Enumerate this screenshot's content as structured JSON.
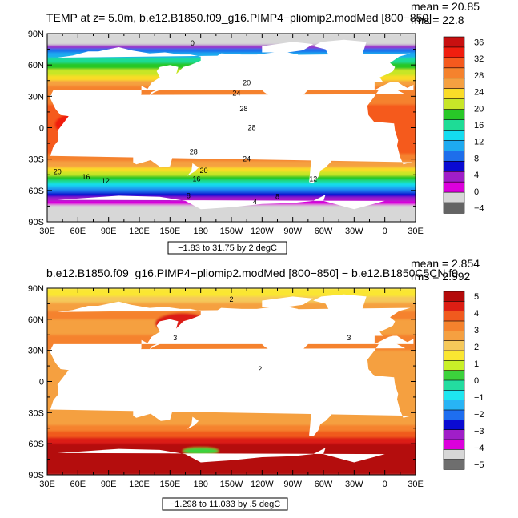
{
  "chart_data": [
    {
      "type": "heatmap",
      "title": "TEMP at z=    5.0m, b.e12.B1850.f09_g16.PIMP4−pliomip2.modMed [800−850]",
      "stats": [
        "mean = 20.85",
        "rms = 22.8"
      ],
      "info_box": "−1.83 to 31.75 by 2 degC",
      "x_ticks": [
        "30E",
        "60E",
        "90E",
        "120E",
        "150E",
        "180",
        "150W",
        "120W",
        "90W",
        "60W",
        "30W",
        "0",
        "30E"
      ],
      "y_ticks": [
        "90N",
        "60N",
        "30N",
        "0",
        "30S",
        "60S",
        "90S"
      ],
      "colorbar_labels": [
        "36",
        "32",
        "28",
        "24",
        "20",
        "16",
        "12",
        "8",
        "4",
        "0",
        "−4"
      ],
      "colorbar_colors": [
        "#c81010",
        "#f01e0f",
        "#f55a1e",
        "#f5822d",
        "#f5a041",
        "#fadc28",
        "#c8e628",
        "#28c828",
        "#1edc96",
        "#14dcf0",
        "#1eaaf0",
        "#1e6eeb",
        "#0a0ad2",
        "#a01ec8",
        "#dc00dc",
        "#d7d7d7",
        "#646464"
      ],
      "contour_labels": [
        {
          "text": "0",
          "lon": 172,
          "lat": 81
        },
        {
          "text": "20",
          "lon": 225,
          "lat": 43
        },
        {
          "text": "24",
          "lon": 215,
          "lat": 33
        },
        {
          "text": "28",
          "lon": 222,
          "lat": 18
        },
        {
          "text": "28",
          "lon": 230,
          "lat": 0
        },
        {
          "text": "28",
          "lon": 173,
          "lat": -23
        },
        {
          "text": "24",
          "lon": 225,
          "lat": -30
        },
        {
          "text": "20",
          "lon": 40,
          "lat": -42
        },
        {
          "text": "20",
          "lon": 183,
          "lat": -41
        },
        {
          "text": "16",
          "lon": 68,
          "lat": -47
        },
        {
          "text": "16",
          "lon": 176,
          "lat": -49
        },
        {
          "text": "12",
          "lon": 87,
          "lat": -51
        },
        {
          "text": "12",
          "lon": 290,
          "lat": -49
        },
        {
          "text": "8",
          "lon": 168,
          "lat": -65
        },
        {
          "text": "8",
          "lon": 255,
          "lat": -66
        },
        {
          "text": "4",
          "lon": 233,
          "lat": -71
        }
      ]
    },
    {
      "type": "heatmap",
      "title": "b.e12.B1850.f09_g16.PIMP4−pliomip2.modMed [800−850]  −  b.e12.B1850C5CN.f0",
      "stats": [
        "mean = 2.854",
        "rms = 2.992"
      ],
      "info_box": "−1.298 to 11.033 by .5 degC",
      "x_ticks": [
        "30E",
        "60E",
        "90E",
        "120E",
        "150E",
        "180",
        "150W",
        "120W",
        "90W",
        "60W",
        "30W",
        "0",
        "30E"
      ],
      "y_ticks": [
        "90N",
        "60N",
        "30N",
        "0",
        "30S",
        "60S",
        "90S"
      ],
      "colorbar_labels": [
        "5",
        "4",
        "3",
        "2",
        "1",
        "0",
        "−1",
        "−2",
        "−3",
        "−4",
        "−5"
      ],
      "colorbar_colors": [
        "#b40a0a",
        "#dc1e14",
        "#f05a1e",
        "#f5822d",
        "#f5a041",
        "#f5c85a",
        "#fae632",
        "#c8f028",
        "#3cd23c",
        "#23dca0",
        "#1ee6f0",
        "#28b4f5",
        "#1e6ef0",
        "#0a0ad2",
        "#a01ec8",
        "#dc00dc",
        "#d7d7d7",
        "#6e6e6e"
      ],
      "contour_labels": [
        {
          "text": "2",
          "lon": 210,
          "lat": 79
        },
        {
          "text": "3",
          "lon": 155,
          "lat": 42
        },
        {
          "text": "2",
          "lon": 238,
          "lat": 12
        },
        {
          "text": "3",
          "lon": 325,
          "lat": 42
        }
      ]
    }
  ]
}
